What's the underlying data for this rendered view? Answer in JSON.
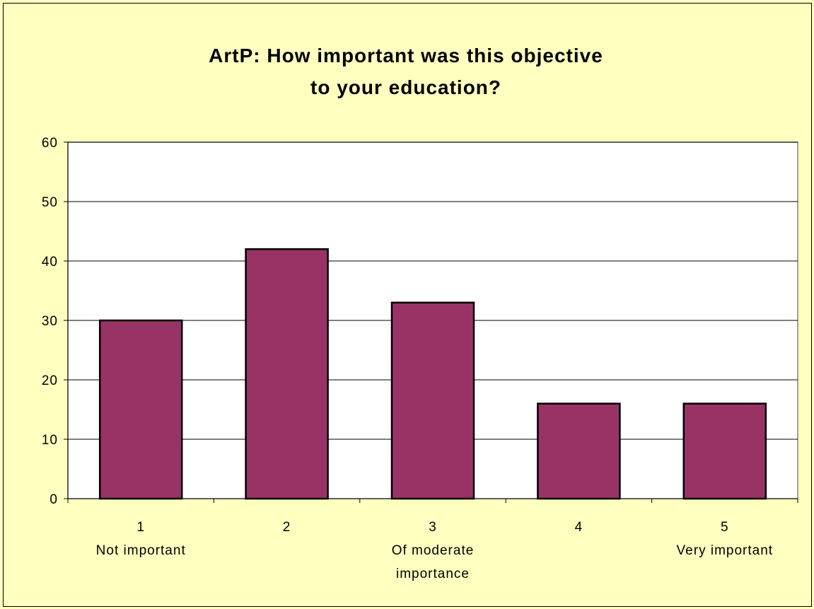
{
  "chart_data": {
    "type": "bar",
    "title_lines": [
      "ArtP:  How  important  was  this  objective",
      "to  your  education?"
    ],
    "categories": [
      [
        "1",
        "Not  important"
      ],
      [
        "2"
      ],
      [
        "3",
        "Of moderate",
        "importance"
      ],
      [
        "4"
      ],
      [
        "5",
        "Very  important"
      ]
    ],
    "values": [
      30,
      42,
      33,
      16,
      16
    ],
    "ylim": [
      0,
      60
    ],
    "yticks": [
      0,
      10,
      20,
      30,
      40,
      50,
      60
    ],
    "grid": true,
    "colors": {
      "bar": "#993366",
      "plot_bg": "#ffffff",
      "page_bg": "#ffffc0",
      "grid": "#000000"
    }
  }
}
